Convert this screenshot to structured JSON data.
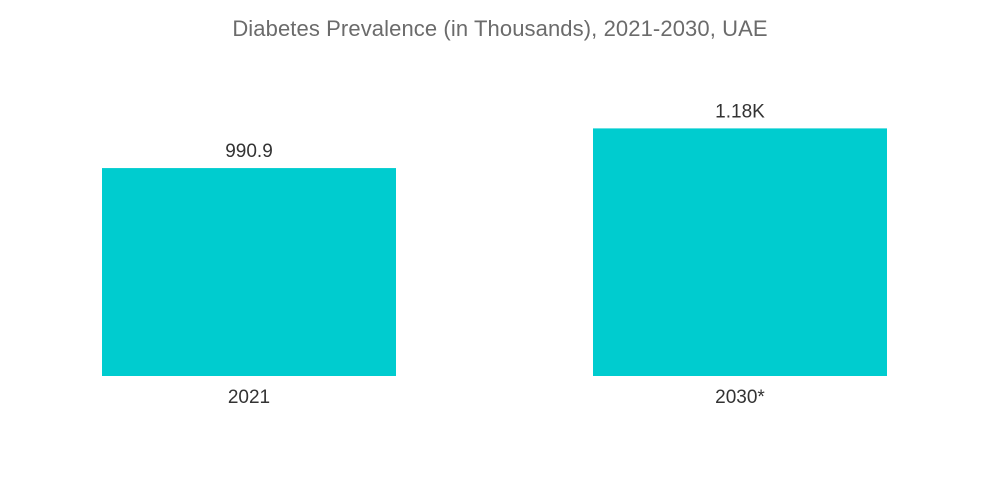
{
  "chart_data": {
    "type": "bar",
    "title": "Diabetes Prevalence (in Thousands), 2021-2030, UAE",
    "categories": [
      "2021",
      "2030*"
    ],
    "values": [
      990.9,
      1180
    ],
    "value_labels": [
      "990.9",
      "1.18K"
    ],
    "xlabel": "",
    "ylabel": "",
    "ylim": [
      0,
      1220
    ],
    "grid": false,
    "legend": "none",
    "bar_color": "#00CCCF"
  }
}
